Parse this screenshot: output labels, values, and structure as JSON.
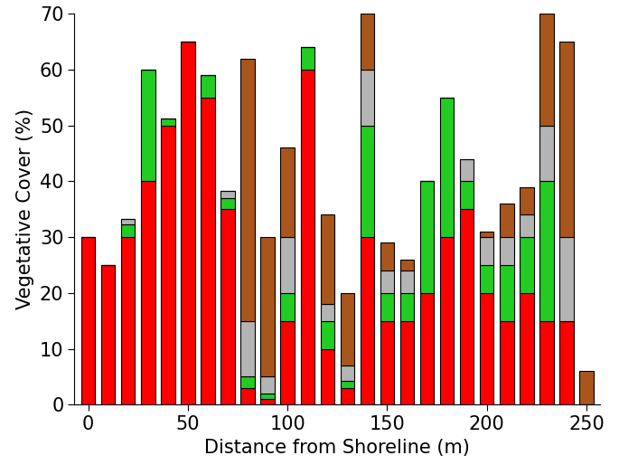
{
  "chart_data": {
    "type": "bar",
    "stacked": true,
    "x_label": "Distance from Shoreline (m)",
    "y_label": "Vegetative Cover (%)",
    "x": [
      0,
      10,
      20,
      30,
      40,
      50,
      60,
      70,
      80,
      90,
      100,
      110,
      120,
      130,
      140,
      150,
      160,
      170,
      180,
      190,
      200,
      210,
      220,
      230,
      240,
      250
    ],
    "series": [
      {
        "color": "#ff0000",
        "values": [
          30,
          25,
          30,
          40,
          50,
          65,
          55,
          35,
          3,
          1,
          15,
          60,
          10,
          3,
          30,
          15,
          15,
          20,
          30,
          35,
          20,
          15,
          20,
          15,
          15,
          0
        ]
      },
      {
        "color": "#22cc22",
        "values": [
          0,
          0,
          2.3,
          20,
          1.2,
          0,
          4,
          2,
          2,
          1,
          5,
          4,
          5,
          1.3,
          20,
          5,
          5,
          20,
          25,
          5,
          5,
          10,
          10,
          25,
          0,
          0
        ]
      },
      {
        "color": "#b4b4b4",
        "values": [
          0,
          0,
          1,
          0,
          0,
          0,
          0,
          1.3,
          10,
          3,
          10,
          0,
          3,
          2.7,
          10,
          4,
          4,
          0,
          0,
          4,
          5,
          5,
          4,
          10,
          15,
          0
        ]
      },
      {
        "color": "#a8561c",
        "values": [
          0,
          0,
          0,
          0,
          0,
          0,
          0,
          0,
          47,
          25,
          16,
          0,
          16,
          13,
          10,
          5,
          2,
          0,
          0,
          0,
          1,
          6,
          5,
          20,
          35,
          6
        ]
      }
    ],
    "xlim": [
      -7,
      257
    ],
    "xticks": [
      0,
      50,
      100,
      150,
      200,
      250
    ],
    "ylim": [
      0,
      70
    ],
    "yticks": [
      0,
      10,
      20,
      30,
      40,
      50,
      60,
      70
    ]
  }
}
